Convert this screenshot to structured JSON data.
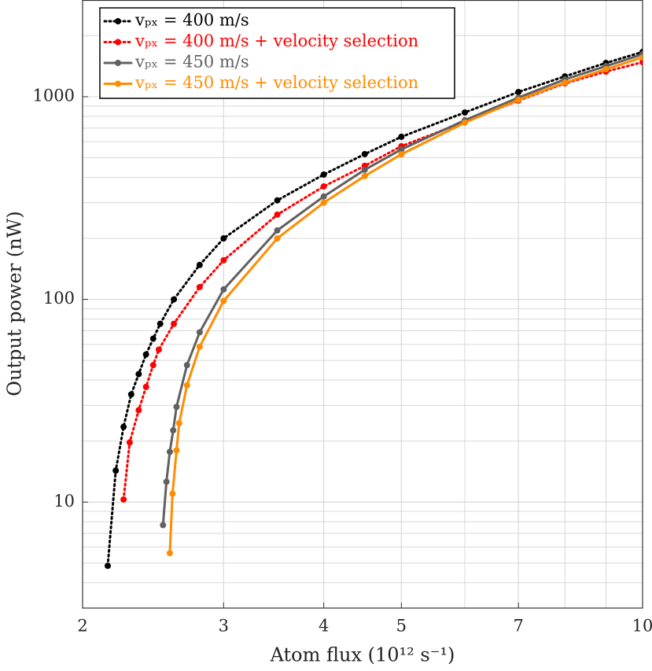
{
  "chart_data": {
    "type": "line",
    "xlabel": "Atom flux (10¹² s⁻¹)",
    "ylabel": "Output power (nW)",
    "xscale": "log",
    "yscale": "log",
    "grid": true,
    "minor_grid": true,
    "legend": "upper left",
    "xlim": [
      2,
      10
    ],
    "xticks": [
      2,
      3,
      4,
      5,
      7,
      10
    ],
    "ylim": [
      3,
      3000
    ],
    "yticks": [
      10,
      100,
      1000
    ],
    "series": [
      {
        "name": "vₚₓ = 400 m/s",
        "color": "#000000",
        "line_style": "dotted",
        "x": [
          2.15,
          2.2,
          2.25,
          2.3,
          2.35,
          2.4,
          2.45,
          2.5,
          2.6,
          2.8,
          3,
          3.5,
          4,
          4.5,
          5,
          6,
          7,
          8,
          9,
          10
        ],
        "values": [
          4.85,
          14.3,
          23.5,
          34,
          42.8,
          53.5,
          64,
          75.8,
          100,
          148,
          200,
          308,
          413,
          521,
          634,
          836,
          1055,
          1260,
          1467,
          1663
        ]
      },
      {
        "name": "vₚₓ = 400 m/s + velocity selection",
        "color": "#ff0000",
        "line_style": "dotted",
        "x": [
          2.25,
          2.29,
          2.35,
          2.4,
          2.45,
          2.49,
          2.6,
          2.8,
          3,
          3.5,
          4,
          4.5,
          5,
          6,
          7,
          8,
          9,
          10
        ],
        "values": [
          10.3,
          19.7,
          28.4,
          37,
          47.4,
          56.5,
          75.8,
          115,
          156,
          262,
          361,
          456,
          570,
          752,
          957,
          1164,
          1330,
          1480
        ]
      },
      {
        "name": "vₚₓ = 450 m/s",
        "color": "#606060",
        "line_style": "solid",
        "x": [
          2.52,
          2.545,
          2.57,
          2.595,
          2.62,
          2.7,
          2.8,
          3,
          3.5,
          4,
          4.5,
          5,
          6,
          7,
          8,
          9,
          10
        ],
        "values": [
          7.7,
          12.6,
          17.7,
          22.6,
          29.5,
          47.4,
          68.8,
          112,
          219,
          322,
          436,
          550,
          765,
          990,
          1217,
          1416,
          1619
        ]
      },
      {
        "name": "vₚₓ = 450 m/s + velocity selection",
        "color": "#ff8c00",
        "line_style": "solid",
        "x": [
          2.57,
          2.59,
          2.62,
          2.64,
          2.7,
          2.8,
          3,
          3.5,
          4,
          4.5,
          5,
          6,
          7,
          8,
          9,
          10
        ],
        "values": [
          5.6,
          11,
          18,
          24.5,
          37.7,
          58.4,
          98.3,
          200,
          300,
          406,
          520,
          745,
          965,
          1174,
          1366,
          1563
        ]
      }
    ]
  }
}
